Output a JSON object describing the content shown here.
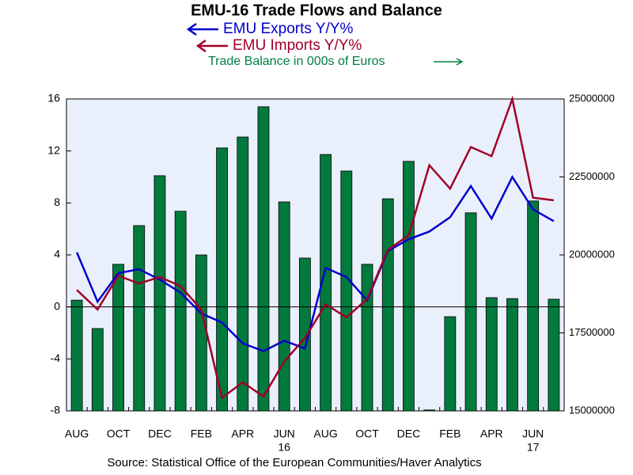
{
  "chart_data": {
    "type": "bar_line",
    "title": "EMU-16 Trade Flows and Balance",
    "source": "Source:  Statistical Office of the European Communities/Haver Analytics",
    "categories": [
      "AUG",
      null,
      "OCT",
      null,
      "DEC",
      null,
      "FEB",
      null,
      "APR",
      null,
      "JUN",
      null,
      "AUG",
      null,
      "OCT",
      null,
      "DEC",
      null,
      "FEB",
      null,
      "APR",
      null,
      "JUN",
      null
    ],
    "year_labels": [
      null,
      null,
      null,
      null,
      null,
      null,
      null,
      null,
      null,
      null,
      "16",
      null,
      null,
      null,
      null,
      null,
      null,
      null,
      null,
      null,
      null,
      null,
      "17",
      null
    ],
    "series": [
      {
        "name": "EMU Exports Y/Y%",
        "color": "#0000cc",
        "type": "line",
        "values": [
          4.2,
          0.4,
          2.6,
          2.9,
          2.1,
          1.1,
          -0.5,
          -1.2,
          -2.8,
          -3.4,
          -2.6,
          -3.2,
          3.0,
          2.3,
          0.5,
          4.3,
          5.2,
          5.8,
          6.9,
          9.3,
          6.8,
          10.0,
          7.5,
          6.6
        ]
      },
      {
        "name": "EMU Imports Y/Y%",
        "color": "#a0002a",
        "type": "line",
        "values": [
          1.3,
          -0.2,
          2.4,
          1.8,
          2.3,
          1.6,
          -0.2,
          -7.0,
          -5.8,
          -6.9,
          -4.2,
          -2.4,
          0.2,
          -0.8,
          0.6,
          4.4,
          5.5,
          10.9,
          9.1,
          12.3,
          11.6,
          16.0,
          8.4,
          8.2
        ]
      },
      {
        "name": "Trade Balance in 000s of Euros",
        "color": "#007a3d",
        "type": "bar",
        "axis": "y2",
        "values": [
          18550000,
          17640000,
          19700000,
          20940000,
          22540000,
          21400000,
          20000000,
          23430000,
          23780000,
          24750000,
          21700000,
          19900000,
          23220000,
          22690000,
          19700000,
          21800000,
          23000000,
          15030000,
          18020000,
          21350000,
          18630000,
          18600000,
          21730000,
          18580000
        ]
      }
    ],
    "ylim": [
      -8,
      16
    ],
    "yticks": [
      -8,
      -4,
      0,
      4,
      8,
      12,
      16
    ],
    "y2lim": [
      15000000,
      25000000
    ],
    "y2ticks": [
      15000000,
      17500000,
      20000000,
      22500000,
      25000000
    ],
    "zero_line": true
  }
}
